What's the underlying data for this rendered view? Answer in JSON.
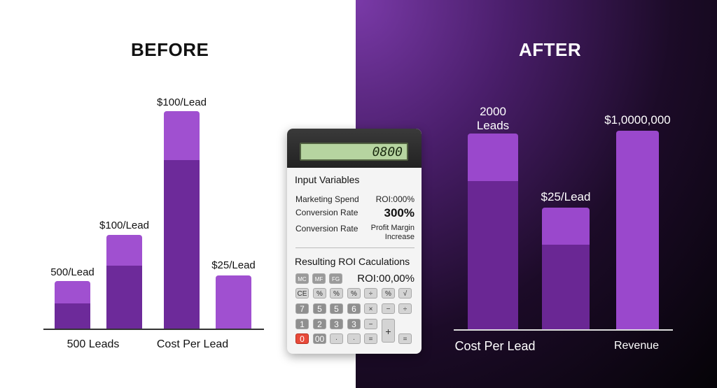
{
  "before": {
    "heading": "BEFORE",
    "category_labels": [
      "500 Leads",
      "Cost Per Lead"
    ]
  },
  "after": {
    "heading": "AFTER",
    "category_labels": [
      "Cost Per Lead",
      "Revenue"
    ]
  },
  "calculator": {
    "display": "0800",
    "input_heading": "Input Variables",
    "rows": [
      {
        "label": "Marketing Spend",
        "value": "ROI:000%"
      },
      {
        "label": "Conversion Rate",
        "value": "300%"
      },
      {
        "label": "Conversion Rate",
        "value": "Profit Margin Increase"
      }
    ],
    "result_heading": "Resulting ROI Caculations",
    "mem_keys": [
      "MC",
      "MF",
      "FG"
    ],
    "result_value": "ROI:00,00%",
    "keys_row1": [
      "CE",
      "%",
      "%",
      "%",
      "÷",
      "%",
      "√"
    ],
    "keys_row2": [
      "7",
      "5",
      "5",
      "6",
      "×",
      "−",
      "÷"
    ],
    "keys_row3": [
      "1",
      "2",
      "3",
      "3",
      "−",
      "−"
    ],
    "keys_row4": [
      "0",
      "00",
      "·",
      "·",
      "="
    ],
    "key_plus": "+",
    "key_last": "="
  },
  "chart_data": [
    {
      "type": "bar",
      "panel": "before",
      "title": "BEFORE",
      "bars": [
        {
          "label": "500/Lead",
          "value": 68,
          "split": 36
        },
        {
          "label": "$100/Lead",
          "value": 134,
          "split": 90
        },
        {
          "label": "$100/Lead",
          "value": 311,
          "split": 241
        },
        {
          "label": "$25/Lead",
          "value": 76,
          "split": null
        }
      ],
      "category_labels": [
        "500 Leads",
        "Cost Per Lead"
      ],
      "colors": {
        "light": "#a050d0",
        "dark": "#6d2a9a",
        "label": "#111111"
      }
    },
    {
      "type": "bar",
      "panel": "after",
      "title": "AFTER",
      "bars": [
        {
          "label": "2000 Leads",
          "value": 280,
          "split": 212
        },
        {
          "label": "$25/Lead",
          "value": 174,
          "split": 121
        },
        {
          "label": "$1,0000,000",
          "value": 284,
          "split": null
        }
      ],
      "category_labels": [
        "Cost Per Lead",
        "Revenue"
      ],
      "colors": {
        "light": "#9a48cc",
        "dark": "#6a2794",
        "label": "#ffffff"
      }
    }
  ]
}
